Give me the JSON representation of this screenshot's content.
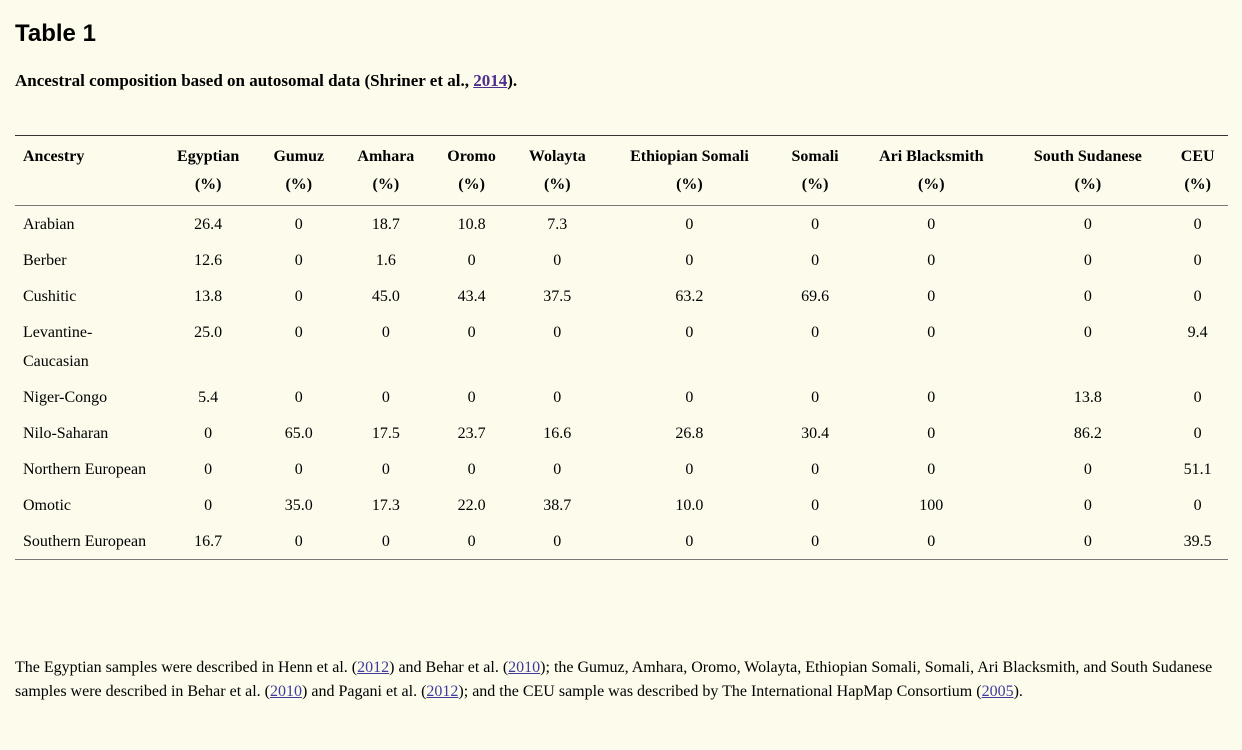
{
  "table_label": "Table 1",
  "caption": {
    "text": "Ancestral composition based on autosomal data (Shriner et al., ",
    "link": "2014",
    "end": ")."
  },
  "columns": [
    {
      "name": "Ancestry",
      "unit": ""
    },
    {
      "name": "Egyptian",
      "unit": "(%)"
    },
    {
      "name": "Gumuz",
      "unit": "(%)"
    },
    {
      "name": "Amhara",
      "unit": "(%)"
    },
    {
      "name": "Oromo",
      "unit": "(%)"
    },
    {
      "name": "Wolayta",
      "unit": "(%)"
    },
    {
      "name": "Ethiopian Somali",
      "unit": "(%)"
    },
    {
      "name": "Somali",
      "unit": "(%)"
    },
    {
      "name": "Ari Blacksmith",
      "unit": "(%)"
    },
    {
      "name": "South Sudanese",
      "unit": "(%)"
    },
    {
      "name": "CEU",
      "unit": "(%)"
    }
  ],
  "rows": [
    {
      "ancestry": "Arabian",
      "values": [
        "26.4",
        "0",
        "18.7",
        "10.8",
        "7.3",
        "0",
        "0",
        "0",
        "0",
        "0"
      ]
    },
    {
      "ancestry": "Berber",
      "values": [
        "12.6",
        "0",
        "1.6",
        "0",
        "0",
        "0",
        "0",
        "0",
        "0",
        "0"
      ]
    },
    {
      "ancestry": "Cushitic",
      "values": [
        "13.8",
        "0",
        "45.0",
        "43.4",
        "37.5",
        "63.2",
        "69.6",
        "0",
        "0",
        "0"
      ]
    },
    {
      "ancestry": "Levantine-Caucasian",
      "values": [
        "25.0",
        "0",
        "0",
        "0",
        "0",
        "0",
        "0",
        "0",
        "0",
        "9.4"
      ]
    },
    {
      "ancestry": "Niger-Congo",
      "values": [
        "5.4",
        "0",
        "0",
        "0",
        "0",
        "0",
        "0",
        "0",
        "13.8",
        "0"
      ]
    },
    {
      "ancestry": "Nilo-Saharan",
      "values": [
        "0",
        "65.0",
        "17.5",
        "23.7",
        "16.6",
        "26.8",
        "30.4",
        "0",
        "86.2",
        "0"
      ]
    },
    {
      "ancestry": "Northern European",
      "values": [
        "0",
        "0",
        "0",
        "0",
        "0",
        "0",
        "0",
        "0",
        "0",
        "51.1"
      ]
    },
    {
      "ancestry": "Omotic",
      "values": [
        "0",
        "35.0",
        "17.3",
        "22.0",
        "38.7",
        "10.0",
        "0",
        "100",
        "0",
        "0"
      ]
    },
    {
      "ancestry": "Southern European",
      "values": [
        "16.7",
        "0",
        "0",
        "0",
        "0",
        "0",
        "0",
        "0",
        "0",
        "39.5"
      ]
    }
  ],
  "footnote": {
    "p1": "The Egyptian samples were described in Henn et al. (",
    "l1": "2012",
    "p2": ") and Behar et al. (",
    "l2": "2010",
    "p3": "); the Gumuz, Amhara, Oromo, Wolayta, Ethiopian Somali, Somali, Ari Blacksmith, and South Sudanese samples were described in Behar et al. (",
    "l3": "2010",
    "p4": ") and Pagani et al. (",
    "l4": "2012",
    "p5": "); and the CEU sample was described by The International HapMap Consortium (",
    "l5": "2005",
    "p6": ")."
  }
}
